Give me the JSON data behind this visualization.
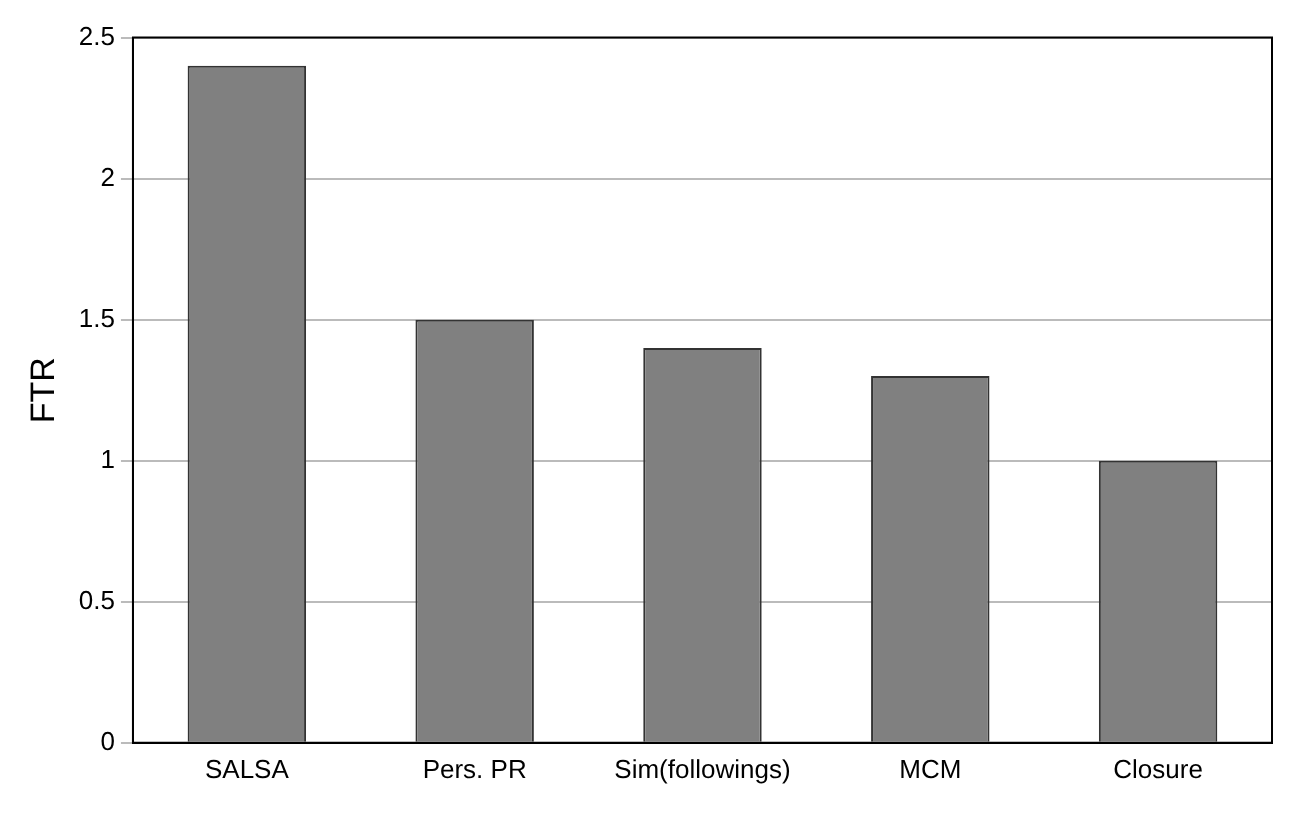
{
  "chart_data": {
    "type": "bar",
    "ylabel": "FTR",
    "categories": [
      "SALSA",
      "Pers. PR",
      "Sim(followings)",
      "MCM",
      "Closure"
    ],
    "values": [
      2.4,
      1.5,
      1.4,
      1.3,
      1.0
    ],
    "color": "#808080",
    "ylim": [
      0,
      2.5
    ],
    "yticks": [
      0,
      0.5,
      1,
      1.5,
      2,
      2.5
    ],
    "grid": "y",
    "legend": false
  }
}
